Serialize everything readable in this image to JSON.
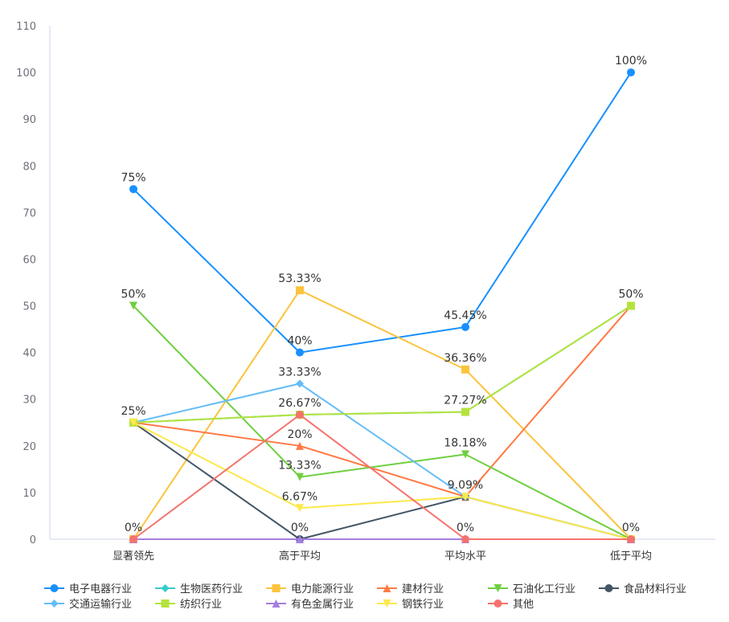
{
  "chart_data": {
    "type": "line",
    "title": "",
    "xlabel": "",
    "ylabel": "",
    "ylim": [
      0,
      110
    ],
    "yticks": [
      0,
      10,
      20,
      30,
      40,
      50,
      60,
      70,
      80,
      90,
      100,
      110
    ],
    "grid": false,
    "legend_position": "bottom",
    "categories": [
      "显著领先",
      "高于平均",
      "平均水平",
      "低于平均"
    ],
    "series": [
      {
        "name": "电子电器行业",
        "color": "#1890ff",
        "marker": "circle",
        "values": [
          75,
          40,
          45.45,
          100
        ]
      },
      {
        "name": "生物医药行业",
        "color": "#36cbcb",
        "marker": "diamond",
        "values": [
          25,
          26.67,
          27.27,
          50
        ]
      },
      {
        "name": "电力能源行业",
        "color": "#fbc33d",
        "marker": "square",
        "values": [
          0,
          53.33,
          36.36,
          0
        ]
      },
      {
        "name": "建材行业",
        "color": "#ff7a45",
        "marker": "triangle",
        "values": [
          25,
          20,
          9.09,
          50
        ]
      },
      {
        "name": "石油化工行业",
        "color": "#6fcf3f",
        "marker": "triangle-down",
        "values": [
          50,
          13.33,
          18.18,
          0
        ]
      },
      {
        "name": "食品材料行业",
        "color": "#435665",
        "marker": "circle",
        "values": [
          25,
          0,
          9.09,
          0
        ]
      },
      {
        "name": "交通运输行业",
        "color": "#66bdf8",
        "marker": "diamond",
        "values": [
          25,
          33.33,
          9.09,
          0
        ]
      },
      {
        "name": "纺织行业",
        "color": "#b5e33d",
        "marker": "square",
        "values": [
          25,
          26.67,
          27.27,
          50
        ]
      },
      {
        "name": "有色金属行业",
        "color": "#a57fe0",
        "marker": "triangle",
        "values": [
          0,
          0,
          0,
          0
        ]
      },
      {
        "name": "钢铁行业",
        "color": "#fde84a",
        "marker": "triangle-down",
        "values": [
          25,
          6.67,
          9.09,
          0
        ]
      },
      {
        "name": "其他",
        "color": "#f5736e",
        "marker": "circle",
        "values": [
          0,
          26.67,
          0,
          0
        ]
      }
    ],
    "data_labels": [
      {
        "category": "显著领先",
        "text": "75%",
        "value": 75
      },
      {
        "category": "显著领先",
        "text": "50%",
        "value": 50
      },
      {
        "category": "显著领先",
        "text": "25%",
        "value": 25
      },
      {
        "category": "显著领先",
        "text": "0%",
        "value": 0
      },
      {
        "category": "高于平均",
        "text": "53.33%",
        "value": 53.33
      },
      {
        "category": "高于平均",
        "text": "40%",
        "value": 40
      },
      {
        "category": "高于平均",
        "text": "33.33%",
        "value": 33.33
      },
      {
        "category": "高于平均",
        "text": "26.67%",
        "value": 26.67
      },
      {
        "category": "高于平均",
        "text": "20%",
        "value": 20
      },
      {
        "category": "高于平均",
        "text": "13.33%",
        "value": 13.33
      },
      {
        "category": "高于平均",
        "text": "6.67%",
        "value": 6.67
      },
      {
        "category": "高于平均",
        "text": "0%",
        "value": 0
      },
      {
        "category": "平均水平",
        "text": "45.45%",
        "value": 45.45
      },
      {
        "category": "平均水平",
        "text": "36.36%",
        "value": 36.36
      },
      {
        "category": "平均水平",
        "text": "27.27%",
        "value": 27.27
      },
      {
        "category": "平均水平",
        "text": "18.18%",
        "value": 18.18
      },
      {
        "category": "平均水平",
        "text": "9.09%",
        "value": 9.09
      },
      {
        "category": "平均水平",
        "text": "0%",
        "value": 0
      },
      {
        "category": "低于平均",
        "text": "100%",
        "value": 100
      },
      {
        "category": "低于平均",
        "text": "50%",
        "value": 50
      },
      {
        "category": "低于平均",
        "text": "0%",
        "value": 0
      }
    ]
  },
  "legend": {
    "rows": [
      [
        "电子电器行业",
        "生物医药行业",
        "电力能源行业",
        "建材行业",
        "石油化工行业",
        "食品材料行业"
      ],
      [
        "交通运输行业",
        "纺织行业",
        "有色金属行业",
        "钢铁行业",
        "其他"
      ]
    ]
  }
}
